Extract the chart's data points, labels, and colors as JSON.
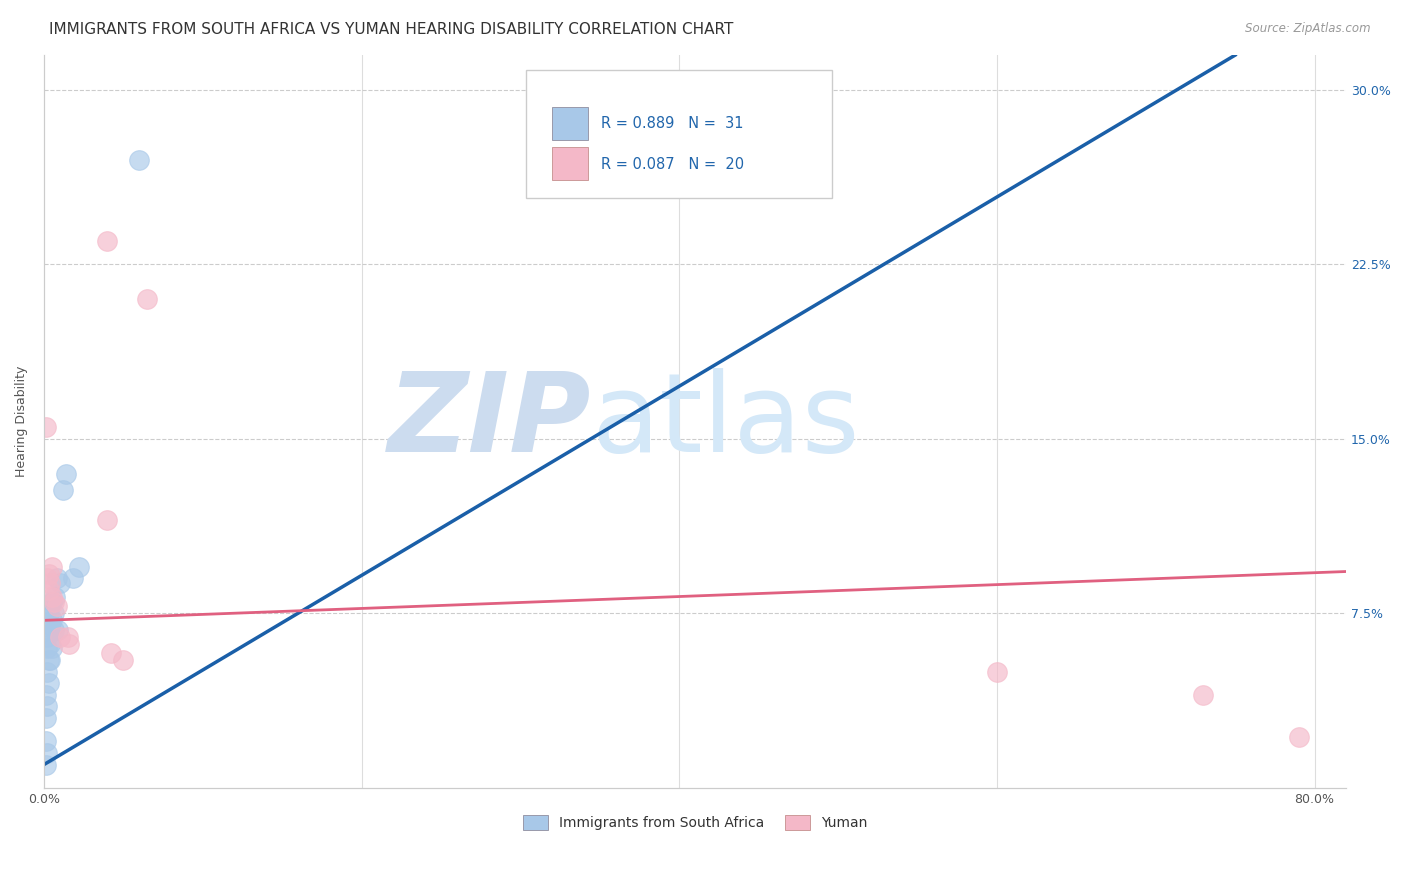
{
  "title": "IMMIGRANTS FROM SOUTH AFRICA VS YUMAN HEARING DISABILITY CORRELATION CHART",
  "source": "Source: ZipAtlas.com",
  "ylabel": "Hearing Disability",
  "ylabel_right_ticks": [
    "30.0%",
    "22.5%",
    "15.0%",
    "7.5%"
  ],
  "ylabel_right_vals": [
    0.3,
    0.225,
    0.15,
    0.075
  ],
  "legend_label1": "Immigrants from South Africa",
  "legend_label2": "Yuman",
  "blue_color": "#a8c8e8",
  "pink_color": "#f4b8c8",
  "blue_line_color": "#1a5fa8",
  "pink_line_color": "#e06080",
  "blue_scatter": [
    [
      0.001,
      0.01
    ],
    [
      0.001,
      0.02
    ],
    [
      0.001,
      0.03
    ],
    [
      0.001,
      0.04
    ],
    [
      0.002,
      0.015
    ],
    [
      0.002,
      0.035
    ],
    [
      0.002,
      0.05
    ],
    [
      0.002,
      0.06
    ],
    [
      0.002,
      0.065
    ],
    [
      0.003,
      0.045
    ],
    [
      0.003,
      0.055
    ],
    [
      0.003,
      0.068
    ],
    [
      0.003,
      0.075
    ],
    [
      0.004,
      0.055
    ],
    [
      0.004,
      0.062
    ],
    [
      0.004,
      0.07
    ],
    [
      0.004,
      0.078
    ],
    [
      0.005,
      0.06
    ],
    [
      0.005,
      0.072
    ],
    [
      0.005,
      0.08
    ],
    [
      0.006,
      0.068
    ],
    [
      0.006,
      0.075
    ],
    [
      0.007,
      0.082
    ],
    [
      0.008,
      0.09
    ],
    [
      0.009,
      0.068
    ],
    [
      0.01,
      0.088
    ],
    [
      0.012,
      0.128
    ],
    [
      0.014,
      0.135
    ],
    [
      0.018,
      0.09
    ],
    [
      0.022,
      0.095
    ],
    [
      0.06,
      0.27
    ]
  ],
  "pink_scatter": [
    [
      0.001,
      0.155
    ],
    [
      0.002,
      0.09
    ],
    [
      0.003,
      0.085
    ],
    [
      0.003,
      0.092
    ],
    [
      0.004,
      0.088
    ],
    [
      0.005,
      0.082
    ],
    [
      0.005,
      0.095
    ],
    [
      0.006,
      0.08
    ],
    [
      0.008,
      0.078
    ],
    [
      0.01,
      0.065
    ],
    [
      0.015,
      0.065
    ],
    [
      0.016,
      0.062
    ],
    [
      0.04,
      0.115
    ],
    [
      0.04,
      0.235
    ],
    [
      0.042,
      0.058
    ],
    [
      0.05,
      0.055
    ],
    [
      0.065,
      0.21
    ],
    [
      0.6,
      0.05
    ],
    [
      0.73,
      0.04
    ],
    [
      0.79,
      0.022
    ]
  ],
  "xlim": [
    0,
    0.82
  ],
  "ylim": [
    0,
    0.315
  ],
  "grid_color": "#cccccc",
  "background_color": "#ffffff",
  "watermark_zip": "ZIP",
  "watermark_atlas": "atlas",
  "watermark_color": "#ccdcef",
  "title_fontsize": 11,
  "axis_label_fontsize": 9,
  "tick_fontsize": 9,
  "legend_fontsize": 10,
  "blue_line_manual": [
    [
      0.0,
      0.01
    ],
    [
      0.75,
      0.315
    ]
  ],
  "pink_line_manual": [
    [
      0.0,
      0.072
    ],
    [
      0.82,
      0.093
    ]
  ]
}
